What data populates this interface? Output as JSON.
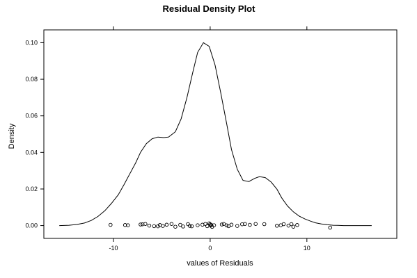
{
  "chart_data": {
    "type": "line",
    "title": "Residual Density Plot",
    "xlabel": "values of Residuals",
    "ylabel": "Density",
    "xlim": [
      -17.2,
      19.3
    ],
    "ylim": [
      -0.007,
      0.107
    ],
    "xticks": [
      -10,
      0,
      10
    ],
    "xtick_labels": [
      "-10",
      "0",
      "10"
    ],
    "yticks": [
      0.0,
      0.02,
      0.04,
      0.06,
      0.08,
      0.1
    ],
    "ytick_labels": [
      "0.00",
      "0.02",
      "0.04",
      "0.06",
      "0.08",
      "0.10"
    ],
    "grid": false,
    "series": [
      {
        "kind": "density-line",
        "x": [
          -15.6,
          -14.6,
          -13.8,
          -13.0,
          -12.3,
          -11.6,
          -10.9,
          -10.2,
          -9.5,
          -8.9,
          -8.3,
          -7.7,
          -7.2,
          -6.6,
          -6.0,
          -5.4,
          -4.8,
          -4.3,
          -3.6,
          -3.0,
          -2.4,
          -1.8,
          -1.3,
          -0.7,
          -0.1,
          0.5,
          1.1,
          1.7,
          2.2,
          2.8,
          3.4,
          4.0,
          4.6,
          5.1,
          5.7,
          6.3,
          6.9,
          7.4,
          8.0,
          8.6,
          9.2,
          9.8,
          10.4,
          10.9,
          11.5,
          12.1,
          12.7,
          13.2,
          13.8,
          14.4,
          15.0,
          15.6,
          16.1,
          16.7
        ],
        "y": [
          0.0,
          0.0002,
          0.0006,
          0.0014,
          0.0028,
          0.005,
          0.0081,
          0.0122,
          0.0169,
          0.0225,
          0.0284,
          0.0344,
          0.0401,
          0.0448,
          0.0475,
          0.0484,
          0.0481,
          0.0484,
          0.0513,
          0.0584,
          0.0701,
          0.0838,
          0.0947,
          0.1,
          0.098,
          0.0878,
          0.0724,
          0.0559,
          0.0416,
          0.0308,
          0.0247,
          0.0241,
          0.0258,
          0.0268,
          0.0262,
          0.0238,
          0.0199,
          0.0151,
          0.0107,
          0.0075,
          0.0052,
          0.0036,
          0.0024,
          0.0015,
          0.0009,
          0.0005,
          0.0002,
          0.0001,
          0.0,
          0.0,
          0.0,
          0.0,
          0.0,
          0.0
        ]
      },
      {
        "kind": "rug-points",
        "x": [
          -10.3,
          -8.8,
          -8.5,
          -7.2,
          -7.0,
          -6.7,
          -6.3,
          -5.8,
          -5.4,
          -5.2,
          -4.9,
          -4.5,
          -4.0,
          -3.6,
          -3.1,
          -2.8,
          -2.3,
          -2.1,
          -1.9,
          -1.3,
          -0.8,
          -0.5,
          -0.3,
          -0.1,
          0.0,
          0.05,
          0.1,
          0.2,
          0.4,
          1.2,
          1.4,
          1.7,
          1.9,
          2.2,
          2.8,
          3.3,
          3.6,
          4.1,
          4.7,
          5.6,
          6.9,
          7.3,
          7.6,
          8.1,
          8.4,
          8.6,
          9.0,
          12.4
        ],
        "y": [
          0.0004,
          0.0003,
          0.0002,
          0.0006,
          0.0007,
          0.0009,
          0.0,
          -0.0003,
          -0.0004,
          0.0003,
          -0.0002,
          0.0005,
          0.0009,
          -0.0006,
          0.0004,
          -0.0005,
          0.0008,
          -0.0002,
          -0.0004,
          0.0002,
          0.0005,
          0.0009,
          -0.0003,
          0.0012,
          0.0007,
          0.0,
          0.0004,
          -0.0007,
          0.0002,
          0.0006,
          0.0009,
          0.0001,
          -0.0003,
          0.0005,
          -0.0002,
          0.0007,
          0.0009,
          0.0004,
          0.0009,
          0.0008,
          -0.0001,
          0.0002,
          0.0008,
          0.0,
          0.0008,
          -0.0006,
          0.0003,
          -0.0011
        ]
      }
    ]
  }
}
